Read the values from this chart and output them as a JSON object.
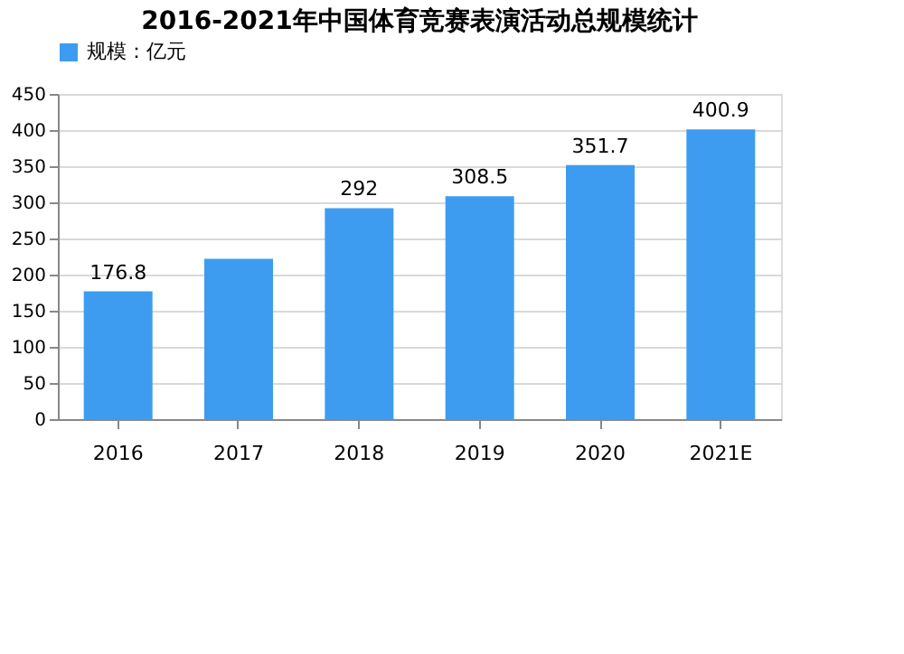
{
  "chart_data": {
    "type": "bar",
    "title": "2016-2021年中国体育竞赛表演活动总规模统计",
    "categories": [
      "2016",
      "2017",
      "2018",
      "2019",
      "2020",
      "2021E"
    ],
    "series": [
      {
        "name": "规模：亿元",
        "color": "#3d9cf0",
        "values": [
          176.8,
          222,
          292,
          308.5,
          351.7,
          400.9
        ]
      }
    ],
    "value_labels": [
      "176.8",
      null,
      "292",
      "308.5",
      "351.7",
      "400.9"
    ],
    "ylim": [
      0,
      450
    ],
    "yticks": [
      0,
      50,
      100,
      150,
      200,
      250,
      300,
      350,
      400,
      450
    ],
    "grid": "y",
    "legend": "top"
  }
}
